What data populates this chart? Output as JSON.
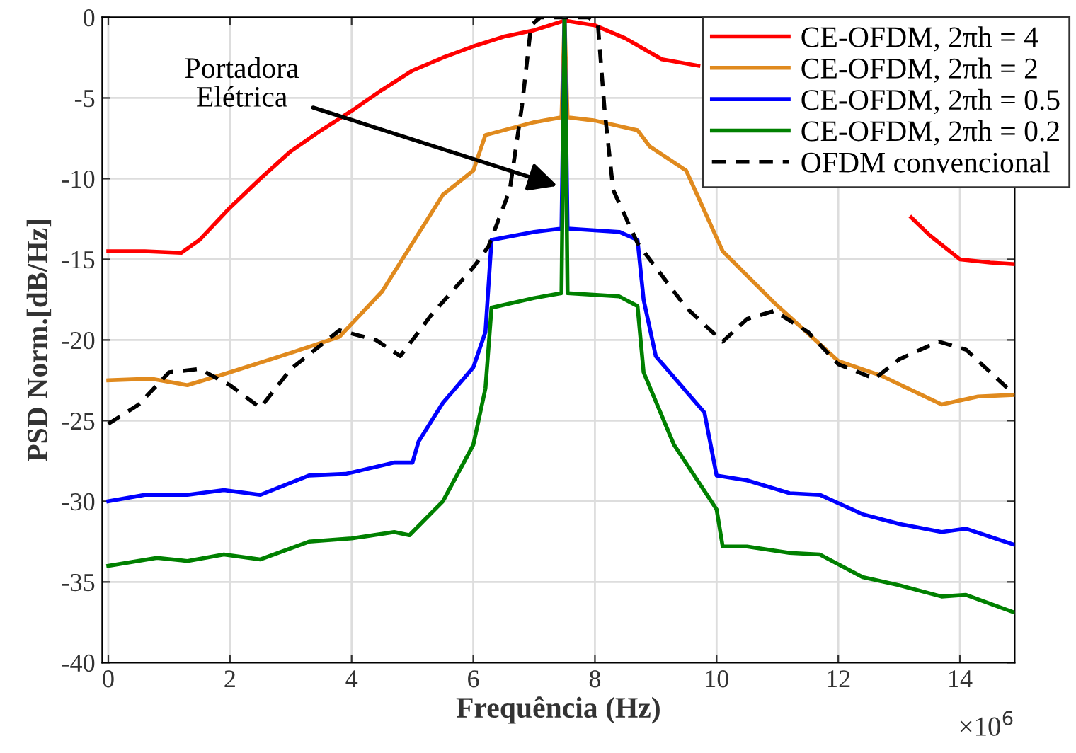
{
  "chart_data": {
    "type": "line",
    "xlabel": "Frequência (Hz)",
    "ylabel": "PSD Norm.[dB/Hz]",
    "xlim": [
      -0.1,
      14.9
    ],
    "ylim": [
      -40,
      0
    ],
    "xticks": [
      0,
      2,
      4,
      6,
      8,
      10,
      12,
      14
    ],
    "yticks": [
      -40,
      -35,
      -30,
      -25,
      -20,
      -15,
      -10,
      -5,
      0
    ],
    "grid": true,
    "legend": "top right",
    "line_style": "solid",
    "marker": "none",
    "annotations": [
      "Portadora\nElétrica",
      "×10$^{6}$"
    ],
    "series": [
      {
        "name": "CE-OFDM, 2πh = 4",
        "color": "#ff0000",
        "x": [
          0,
          0.6,
          1.2,
          1.5,
          2,
          2.5,
          3,
          3.5,
          4,
          4.5,
          5,
          5.5,
          6,
          6.5,
          7,
          7.5,
          8,
          8.5,
          9.1,
          9.7,
          11,
          13.2,
          13.5,
          14,
          14.5,
          14.9
        ],
        "values": [
          -14.5,
          -14.5,
          -14.6,
          -13.8,
          -11.8,
          -10.0,
          -8.3,
          -7.0,
          -5.8,
          -4.5,
          -3.3,
          -2.5,
          -1.8,
          -1.2,
          -0.8,
          -0.2,
          -0.5,
          -1.3,
          -2.6,
          -3.0,
          null,
          -12.4,
          -13.5,
          -15.0,
          -15.2,
          -15.3
        ]
      },
      {
        "name": "CE-OFDM, 2πh = 2",
        "color": "#e08a1e",
        "x": [
          0,
          0.7,
          1.3,
          2,
          3,
          3.8,
          4.5,
          5,
          5.5,
          6,
          6.2,
          7,
          7.45,
          7.5,
          7.55,
          8,
          8.7,
          8.9,
          9.5,
          9.86,
          10.1,
          10.95,
          12,
          12.7,
          13.7,
          14.3,
          14.9
        ],
        "values": [
          -22.5,
          -22.4,
          -22.8,
          -22.0,
          -20.8,
          -19.8,
          -17.0,
          -14.0,
          -11.0,
          -9.5,
          -7.3,
          -6.5,
          -6.2,
          0,
          -6.2,
          -6.4,
          -7.0,
          -8.0,
          -9.5,
          -12.5,
          -14.5,
          -17.7,
          -21.3,
          -22.2,
          -24.0,
          -23.5,
          -23.4
        ]
      },
      {
        "name": "CE-OFDM, 2πh = 0.5",
        "color": "#0000ff",
        "x": [
          0,
          0.6,
          1.3,
          1.9,
          2.5,
          3.3,
          3.9,
          4.7,
          5.0,
          5.1,
          5.5,
          6,
          6.2,
          6.3,
          7,
          7.45,
          7.5,
          7.55,
          8.4,
          8.7,
          8.8,
          9,
          9.8,
          10,
          10.5,
          11.2,
          11.7,
          12.4,
          13,
          13.7,
          14.1,
          14.9
        ],
        "values": [
          -30.0,
          -29.6,
          -29.6,
          -29.3,
          -29.6,
          -28.4,
          -28.3,
          -27.6,
          -27.6,
          -26.3,
          -23.9,
          -21.7,
          -19.5,
          -13.8,
          -13.3,
          -13.1,
          0,
          -13.1,
          -13.3,
          -13.8,
          -17.5,
          -21.0,
          -24.5,
          -28.4,
          -28.7,
          -29.5,
          -29.6,
          -30.8,
          -31.4,
          -31.9,
          -31.7,
          -32.7
        ]
      },
      {
        "name": "CE-OFDM, 2πh = 0.2",
        "color": "#008000",
        "x": [
          0,
          0.8,
          1.3,
          1.9,
          2.5,
          3.3,
          4,
          4.7,
          4.95,
          5.5,
          6,
          6.2,
          6.3,
          7,
          7.45,
          7.5,
          7.55,
          8.4,
          8.7,
          8.8,
          9.3,
          10,
          10.1,
          10.5,
          11.2,
          11.7,
          12.4,
          13,
          13.7,
          14.1,
          14.9
        ],
        "values": [
          -34.0,
          -33.5,
          -33.7,
          -33.3,
          -33.6,
          -32.5,
          -32.3,
          -31.9,
          -32.1,
          -30.0,
          -26.5,
          -23.0,
          -18.0,
          -17.4,
          -17.1,
          0,
          -17.1,
          -17.3,
          -17.9,
          -22.0,
          -26.5,
          -30.5,
          -32.8,
          -32.8,
          -33.2,
          -33.3,
          -34.7,
          -35.2,
          -35.9,
          -35.8,
          -36.9
        ]
      },
      {
        "name": "OFDM convencional",
        "color": "#000000",
        "line_style": "dashed",
        "x": [
          0,
          0.5,
          1,
          1.5,
          2,
          2.5,
          3,
          3.8,
          4.4,
          4.8,
          5.3,
          6,
          6.25,
          6.6,
          6.8,
          6.95,
          7.1,
          7.9,
          8.05,
          8.16,
          8.3,
          8.7,
          9,
          9.5,
          10.1,
          10.5,
          10.95,
          11.5,
          12,
          12.6,
          13,
          13.65,
          14.1,
          14.9
        ],
        "values": [
          -25.2,
          -24.0,
          -22.0,
          -21.8,
          -22.8,
          -24.2,
          -21.8,
          -19.4,
          -20.0,
          -21.0,
          -18.5,
          -15.5,
          -14.2,
          -10.7,
          -5.5,
          -0.5,
          0,
          0,
          -0.5,
          -5.8,
          -10.7,
          -14.0,
          -15.5,
          -18.0,
          -20.1,
          -18.7,
          -18.2,
          -19.5,
          -21.5,
          -22.4,
          -21.2,
          -20.1,
          -20.6,
          -23.4
        ]
      }
    ]
  }
}
